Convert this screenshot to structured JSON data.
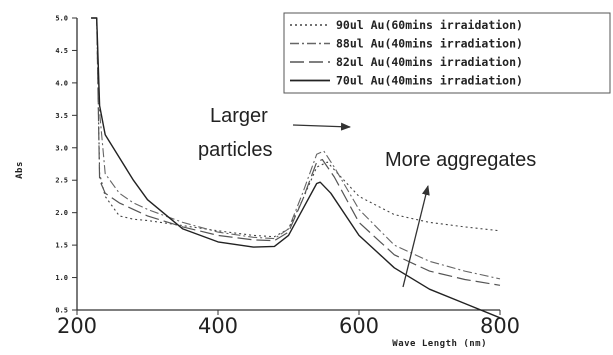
{
  "chart_data": {
    "type": "line",
    "title": "",
    "xlabel": "Wave Length (nm)",
    "ylabel": "Abs",
    "xlim": [
      200,
      800
    ],
    "ylim": [
      0.5,
      5.0
    ],
    "x_ticks": [
      "200",
      "400",
      "600",
      "800"
    ],
    "y_ticks": [
      "0.5",
      "1.0",
      "1.5",
      "2.0",
      "2.5",
      "3.0",
      "3.5",
      "4.0",
      "4.5",
      "5.0"
    ],
    "grid": false,
    "legend_position": "top-right",
    "series": [
      {
        "name": "90ul Au(60mins irraidation)",
        "style": "dotted",
        "points": [
          [
            220,
            5.0
          ],
          [
            228,
            5.0
          ],
          [
            232,
            2.6
          ],
          [
            240,
            2.25
          ],
          [
            260,
            1.95
          ],
          [
            280,
            1.9
          ],
          [
            300,
            1.88
          ],
          [
            350,
            1.8
          ],
          [
            400,
            1.72
          ],
          [
            450,
            1.65
          ],
          [
            480,
            1.63
          ],
          [
            500,
            1.75
          ],
          [
            520,
            2.2
          ],
          [
            540,
            2.7
          ],
          [
            555,
            2.78
          ],
          [
            570,
            2.6
          ],
          [
            600,
            2.25
          ],
          [
            650,
            1.97
          ],
          [
            700,
            1.85
          ],
          [
            750,
            1.78
          ],
          [
            800,
            1.72
          ]
        ]
      },
      {
        "name": "88ul Au(40mins irradiation)",
        "style": "dash-dot",
        "points": [
          [
            220,
            5.0
          ],
          [
            228,
            5.0
          ],
          [
            232,
            3.55
          ],
          [
            240,
            2.6
          ],
          [
            260,
            2.3
          ],
          [
            280,
            2.15
          ],
          [
            300,
            2.05
          ],
          [
            350,
            1.85
          ],
          [
            400,
            1.7
          ],
          [
            450,
            1.62
          ],
          [
            480,
            1.6
          ],
          [
            500,
            1.75
          ],
          [
            520,
            2.3
          ],
          [
            540,
            2.9
          ],
          [
            550,
            2.95
          ],
          [
            565,
            2.7
          ],
          [
            600,
            2.05
          ],
          [
            650,
            1.5
          ],
          [
            700,
            1.25
          ],
          [
            750,
            1.1
          ],
          [
            800,
            0.98
          ]
        ]
      },
      {
        "name": "82ul Au(40mins irradiation)",
        "style": "long-dash",
        "points": [
          [
            220,
            5.0
          ],
          [
            228,
            5.0
          ],
          [
            232,
            2.5
          ],
          [
            240,
            2.3
          ],
          [
            260,
            2.15
          ],
          [
            280,
            2.05
          ],
          [
            300,
            1.95
          ],
          [
            350,
            1.78
          ],
          [
            400,
            1.65
          ],
          [
            450,
            1.58
          ],
          [
            480,
            1.57
          ],
          [
            500,
            1.7
          ],
          [
            520,
            2.2
          ],
          [
            540,
            2.78
          ],
          [
            548,
            2.82
          ],
          [
            565,
            2.55
          ],
          [
            600,
            1.85
          ],
          [
            650,
            1.35
          ],
          [
            700,
            1.1
          ],
          [
            750,
            0.97
          ],
          [
            800,
            0.88
          ]
        ]
      },
      {
        "name": "70ul Au(40mins irradiation)",
        "style": "solid",
        "points": [
          [
            220,
            5.0
          ],
          [
            228,
            5.0
          ],
          [
            232,
            3.65
          ],
          [
            240,
            3.2
          ],
          [
            260,
            2.85
          ],
          [
            280,
            2.5
          ],
          [
            300,
            2.2
          ],
          [
            350,
            1.75
          ],
          [
            400,
            1.55
          ],
          [
            450,
            1.47
          ],
          [
            480,
            1.48
          ],
          [
            500,
            1.65
          ],
          [
            520,
            2.05
          ],
          [
            540,
            2.45
          ],
          [
            545,
            2.47
          ],
          [
            560,
            2.3
          ],
          [
            600,
            1.65
          ],
          [
            650,
            1.15
          ],
          [
            700,
            0.82
          ],
          [
            750,
            0.6
          ],
          [
            800,
            0.38
          ]
        ]
      }
    ],
    "annotations": {
      "larger_particles_line1": "Larger",
      "larger_particles_line2": "particles",
      "more_aggregates": "More aggregates"
    }
  }
}
